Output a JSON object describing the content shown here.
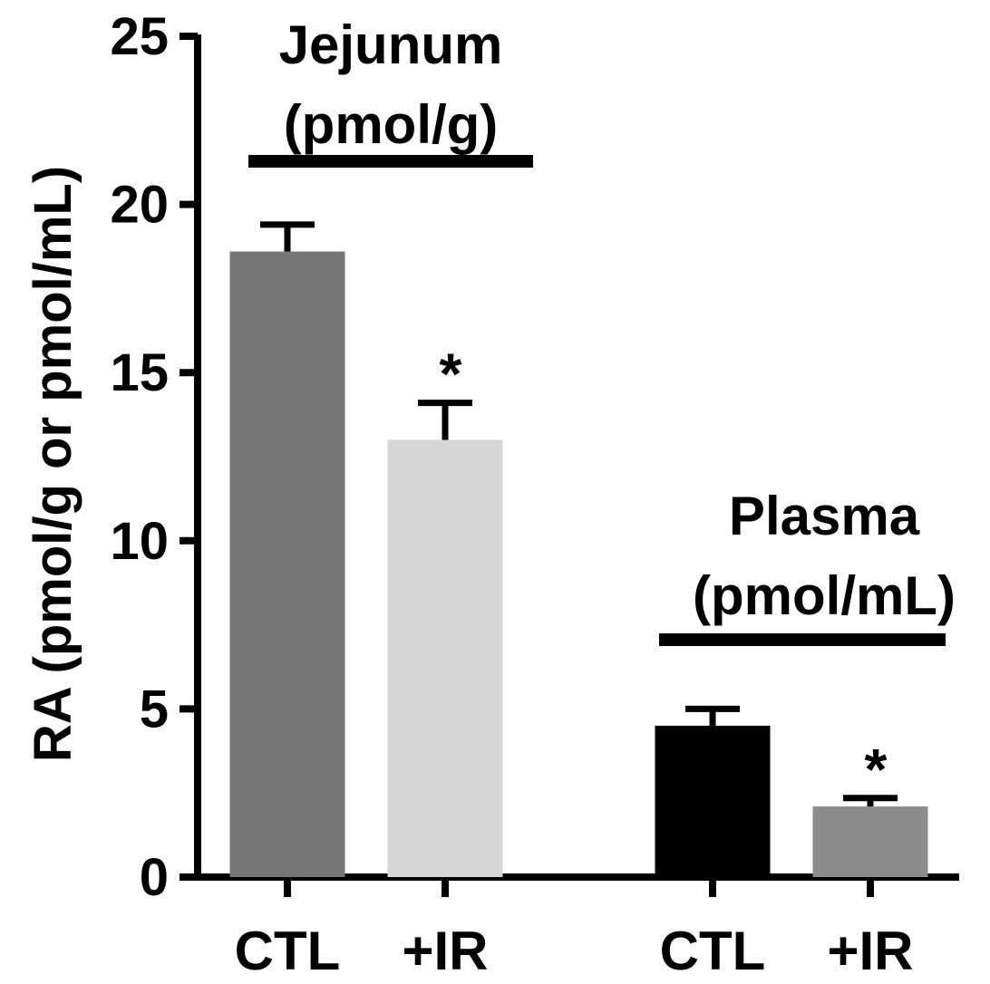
{
  "chart_data": {
    "type": "bar",
    "ylabel": "RA (pmol/g or pmol/mL)",
    "ylim": [
      0,
      25
    ],
    "yticks": [
      0,
      5,
      10,
      15,
      20,
      25
    ],
    "categories": [
      "CTL",
      "+IR",
      "CTL",
      "+IR"
    ],
    "values": [
      18.6,
      13.0,
      4.5,
      2.1
    ],
    "errors": [
      0.8,
      1.1,
      0.5,
      0.25
    ],
    "significance": [
      "",
      "*",
      "",
      "*"
    ],
    "bar_colors": [
      "#777777",
      "#d6d6d6",
      "#000000",
      "#8c8c8c"
    ],
    "groups": [
      {
        "title": "Jejunum",
        "unit": "(pmol/g)",
        "bars": [
          0,
          1
        ]
      },
      {
        "title": "Plasma",
        "unit": "(pmol/mL)",
        "bars": [
          2,
          3
        ]
      }
    ],
    "grid": false
  }
}
